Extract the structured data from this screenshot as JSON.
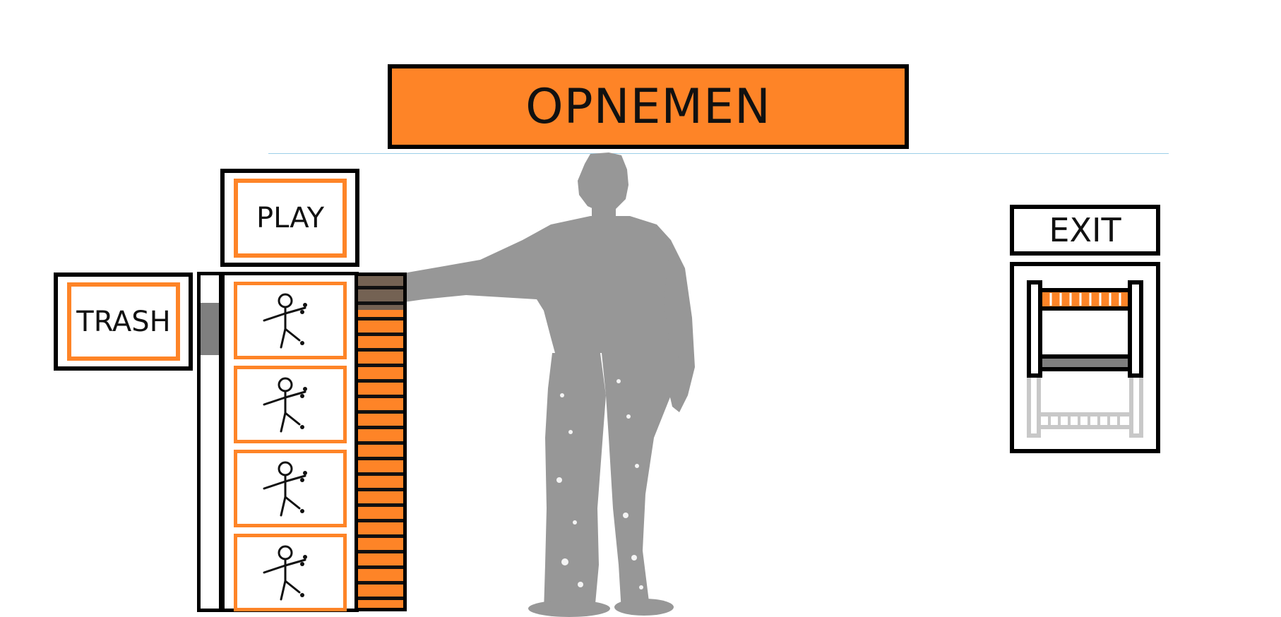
{
  "header": {
    "title": "OPNEMEN"
  },
  "buttons": {
    "play_label": "PLAY",
    "trash_label": "TRASH",
    "exit_label": "EXIT"
  },
  "recordings": {
    "count": 4,
    "icon": "stick-figure-icon"
  },
  "colors": {
    "accent": "#fe8427",
    "border": "#000000",
    "silhouette": "#979797",
    "separator": "#9ccfe8",
    "rail_knob": "#7f7f7f"
  }
}
